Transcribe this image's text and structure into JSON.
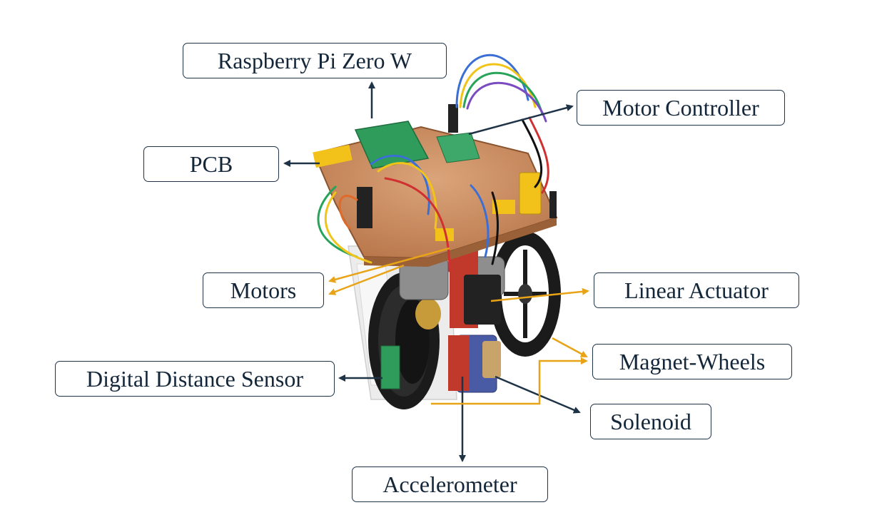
{
  "labels": {
    "raspberry_pi": "Raspberry Pi Zero W",
    "motor_controller": "Motor Controller",
    "pcb": "PCB",
    "motors": "Motors",
    "linear_actuator": "Linear Actuator",
    "magnet_wheels": "Magnet-Wheels",
    "digital_distance_sensor": "Digital Distance Sensor",
    "solenoid": "Solenoid",
    "accelerometer": "Accelerometer"
  },
  "colors": {
    "label_border": "#1f3347",
    "label_text": "#14273a",
    "arrow_navy": "#1f3347",
    "arrow_orange": "#e8a317",
    "pcb_copper": "#c98a5c",
    "wheel_black": "#1b1b1b",
    "green_board": "#2f9c5b",
    "chassis_white": "#ededed",
    "bracket_red": "#c0392b",
    "tape_yellow": "#f2c21b"
  }
}
